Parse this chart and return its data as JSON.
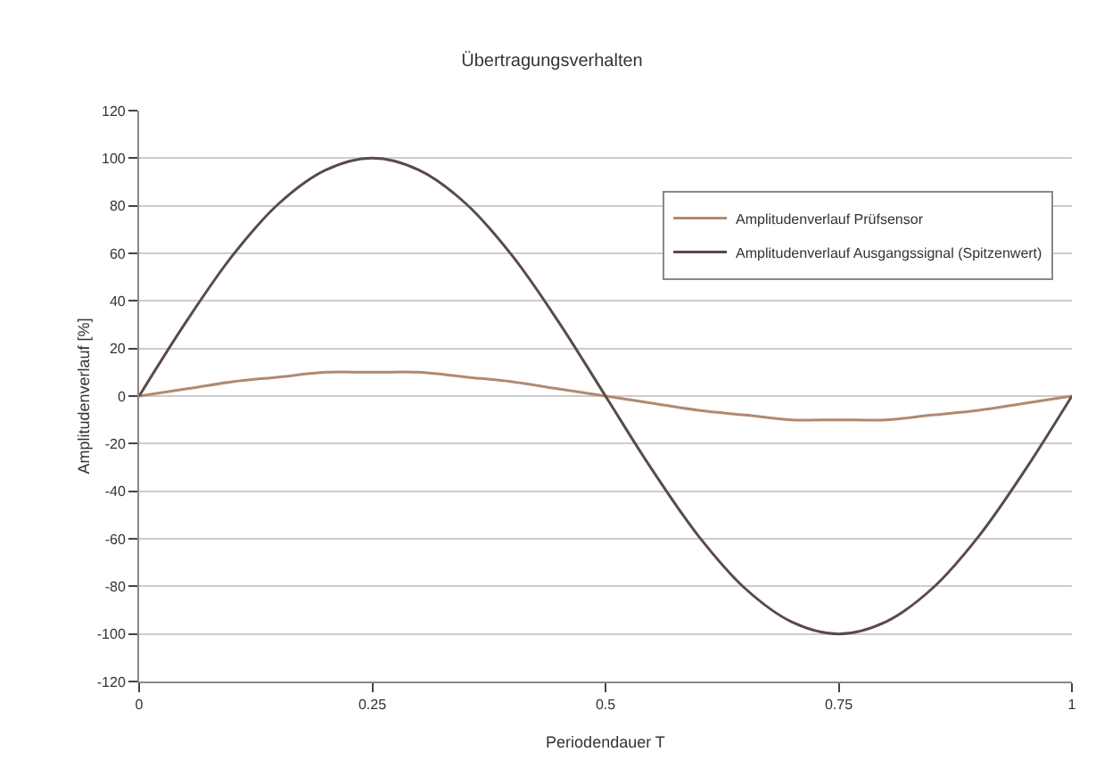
{
  "chart_data": {
    "type": "line",
    "title": "Übertragungsverhalten",
    "xlabel": "Periodendauer T",
    "ylabel": "Amplitudenverlauf [%]",
    "x": [
      0,
      0.05,
      0.1,
      0.15,
      0.2,
      0.25,
      0.3,
      0.35,
      0.4,
      0.45,
      0.5,
      0.55,
      0.6,
      0.65,
      0.7,
      0.75,
      0.8,
      0.85,
      0.9,
      0.95,
      1
    ],
    "series": [
      {
        "name": "Amplitudenverlauf Prüfsensor",
        "color": "#b08a70",
        "values": [
          0,
          3,
          6,
          8,
          10,
          10,
          10,
          8,
          6,
          3,
          0,
          -3,
          -6,
          -8,
          -10,
          -10,
          -10,
          -8,
          -6,
          -3,
          0
        ]
      },
      {
        "name": "Amplitudenverlauf Ausgangssignal (Spitzenwert)",
        "color": "#5a4a48",
        "values": [
          0,
          31,
          59,
          81,
          95,
          100,
          95,
          81,
          59,
          31,
          0,
          -31,
          -59,
          -81,
          -95,
          -100,
          -95,
          -81,
          -59,
          -31,
          0
        ]
      }
    ],
    "xlim": [
      0,
      1
    ],
    "xticks": [
      0,
      0.25,
      0.5,
      0.75,
      1
    ],
    "ylim": [
      -120,
      120
    ],
    "yticks": [
      -120,
      -100,
      -80,
      -60,
      -40,
      -20,
      0,
      20,
      40,
      60,
      80,
      100,
      120
    ],
    "grid": "y",
    "legend": "top right",
    "marker": "none",
    "line_style": "solid"
  }
}
